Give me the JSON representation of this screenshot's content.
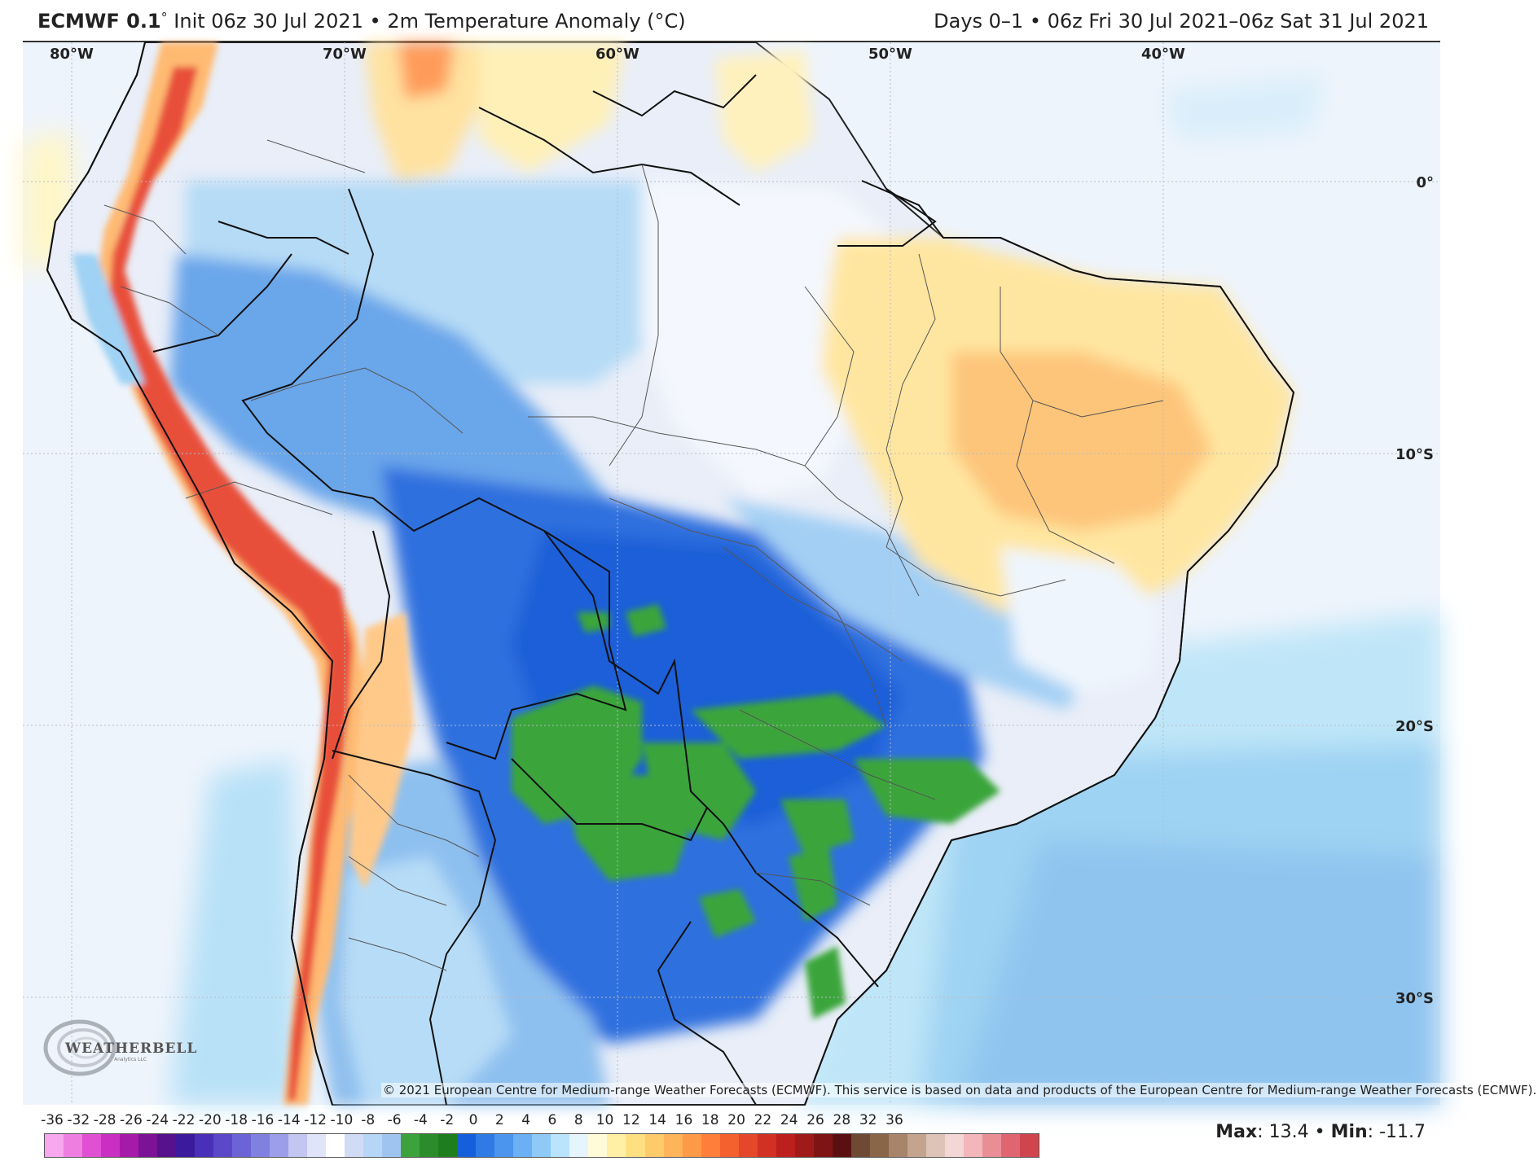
{
  "header": {
    "brand": "ECMWF 0.1",
    "brand_degree": "°",
    "init_text": "Init 06z 30 Jul 2021",
    "bullet": "•",
    "field_text": "2m Temperature Anomaly (°C)",
    "right_text": "Days 0–1 • 06z Fri 30 Jul 2021–06z Sat 31 Jul 2021"
  },
  "map": {
    "longitude_labels": [
      "80°W",
      "70°W",
      "60°W",
      "50°W",
      "40°W"
    ],
    "latitude_labels": [
      "0°",
      "10°S",
      "20°S",
      "30°S"
    ],
    "copyright": "© 2021 European Centre for Medium-range Weather Forecasts (ECMWF). This service is based on data and products of the European Centre for Medium-range Weather Forecasts (ECMWF).",
    "logo_text": "WEATHERBELL",
    "logo_sub": "Analytics LLC"
  },
  "legend": {
    "ticks": [
      "-36",
      "-32",
      "-28",
      "-26",
      "-24",
      "-22",
      "-20",
      "-18",
      "-16",
      "-14",
      "-12",
      "-10",
      "-8",
      "-6",
      "-4",
      "-2",
      "0",
      "2",
      "4",
      "6",
      "8",
      "10",
      "12",
      "14",
      "16",
      "18",
      "20",
      "22",
      "24",
      "26",
      "28",
      "32",
      "36"
    ],
    "colors": [
      "#f7a8ee",
      "#ee7ee0",
      "#e050d2",
      "#c82fc2",
      "#a51aa8",
      "#7c1295",
      "#55128c",
      "#3c1a9c",
      "#4a2fb8",
      "#5a48c8",
      "#6c64d6",
      "#8080e0",
      "#9d9ee9",
      "#c2c6f0",
      "#e0e4f8",
      "#ffffff",
      "#d0dcf5",
      "#b6d6f7",
      "#a0c4f0",
      "#3ca33c",
      "#2b8c2b",
      "#1e7e1e",
      "#155fdc",
      "#2e7be6",
      "#4b95ee",
      "#6bb0f4",
      "#8ec9f7",
      "#b9e4fb",
      "#e6f4fe",
      "#fffbd8",
      "#fff0a6",
      "#ffe080",
      "#ffca6a",
      "#ffb35a",
      "#ff9a48",
      "#ff7e3a",
      "#f4602e",
      "#e5472a",
      "#d33024",
      "#bd1f1f",
      "#a11a1a",
      "#7e1414",
      "#5a1010",
      "#6e4a34",
      "#8a6648",
      "#a8846a",
      "#c4a48e",
      "#ddc4b6",
      "#f3d7d7",
      "#f2b6bb",
      "#ea8e96",
      "#df6670",
      "#d0444e"
    ]
  },
  "stats": {
    "max_label": "Max",
    "max_value": ": 13.4",
    "sep": "•",
    "min_label": "Min",
    "min_value": ": -11.7"
  }
}
